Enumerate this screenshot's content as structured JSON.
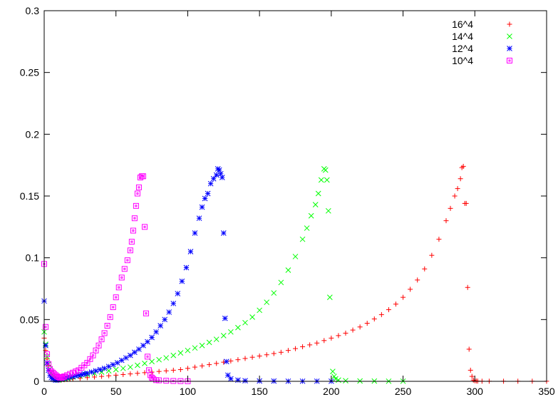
{
  "chart_data": {
    "type": "scatter",
    "xlim": [
      0,
      350
    ],
    "ylim": [
      0,
      0.3
    ],
    "x_ticks": [
      0,
      50,
      100,
      150,
      200,
      250,
      300,
      350
    ],
    "y_ticks": [
      0,
      0.05,
      0.1,
      0.15,
      0.2,
      0.25,
      0.3
    ],
    "x_tick_labels": [
      "0",
      "50",
      "100",
      "150",
      "200",
      "250",
      "300",
      "350"
    ],
    "y_tick_labels": [
      "0",
      "0.05",
      "0.1",
      "0.15",
      "0.2",
      "0.25",
      "0.3"
    ],
    "grid": false,
    "legend_position": "top-right",
    "series": [
      {
        "name": "16^4",
        "color": "#ff0000",
        "marker": "plus",
        "x": [
          0,
          1,
          2,
          3,
          4,
          5,
          6,
          7,
          8,
          9,
          10,
          12,
          14,
          16,
          18,
          20,
          25,
          30,
          35,
          40,
          45,
          50,
          55,
          60,
          65,
          70,
          75,
          80,
          85,
          90,
          95,
          100,
          105,
          110,
          115,
          120,
          125,
          130,
          135,
          140,
          145,
          150,
          155,
          160,
          165,
          170,
          175,
          180,
          185,
          190,
          195,
          200,
          205,
          210,
          215,
          220,
          225,
          230,
          235,
          240,
          245,
          250,
          255,
          260,
          265,
          270,
          275,
          280,
          283,
          286,
          288,
          290,
          291,
          292,
          293,
          294,
          295,
          296,
          297,
          298,
          299,
          300,
          301,
          302,
          305,
          310,
          320,
          330,
          340,
          350
        ],
        "y": [
          0.035,
          0.025,
          0.018,
          0.013,
          0.009,
          0.006,
          0.004,
          0.003,
          0.002,
          0.0015,
          0.001,
          0.0012,
          0.0014,
          0.0016,
          0.0018,
          0.002,
          0.0025,
          0.003,
          0.0035,
          0.004,
          0.0045,
          0.005,
          0.0055,
          0.006,
          0.0065,
          0.007,
          0.0075,
          0.008,
          0.0085,
          0.009,
          0.0095,
          0.0105,
          0.0115,
          0.0125,
          0.0135,
          0.0145,
          0.0155,
          0.0165,
          0.0175,
          0.0185,
          0.0195,
          0.0205,
          0.0215,
          0.0225,
          0.0235,
          0.025,
          0.0265,
          0.028,
          0.0295,
          0.031,
          0.033,
          0.035,
          0.037,
          0.039,
          0.0415,
          0.044,
          0.047,
          0.0505,
          0.054,
          0.058,
          0.0625,
          0.068,
          0.0745,
          0.082,
          0.091,
          0.102,
          0.115,
          0.13,
          0.14,
          0.15,
          0.156,
          0.164,
          0.173,
          0.174,
          0.144,
          0.144,
          0.076,
          0.026,
          0.009,
          0.004,
          0.001,
          0.0005,
          0.0003,
          0.0002,
          0.0001,
          0.0001,
          0.0001,
          0.0001,
          0.0001,
          0.0001
        ]
      },
      {
        "name": "14^4",
        "color": "#00ff00",
        "marker": "cross",
        "x": [
          0,
          1,
          2,
          3,
          4,
          5,
          6,
          7,
          8,
          9,
          10,
          12,
          14,
          16,
          18,
          20,
          25,
          30,
          35,
          40,
          45,
          50,
          55,
          60,
          65,
          70,
          75,
          80,
          85,
          90,
          95,
          100,
          105,
          110,
          115,
          120,
          125,
          130,
          135,
          140,
          145,
          150,
          155,
          160,
          165,
          170,
          175,
          180,
          183,
          186,
          189,
          191,
          193,
          195,
          196,
          197,
          198,
          199,
          201,
          202,
          203,
          205,
          210,
          220,
          230,
          240,
          250
        ],
        "y": [
          0.04,
          0.03,
          0.02,
          0.014,
          0.01,
          0.007,
          0.005,
          0.003,
          0.002,
          0.0015,
          0.001,
          0.0015,
          0.002,
          0.0025,
          0.003,
          0.0035,
          0.0045,
          0.0055,
          0.0065,
          0.0075,
          0.0085,
          0.0095,
          0.0105,
          0.0115,
          0.013,
          0.0145,
          0.016,
          0.0175,
          0.019,
          0.021,
          0.023,
          0.025,
          0.027,
          0.029,
          0.0315,
          0.034,
          0.037,
          0.04,
          0.0435,
          0.0475,
          0.052,
          0.0575,
          0.064,
          0.0715,
          0.08,
          0.09,
          0.101,
          0.115,
          0.124,
          0.134,
          0.143,
          0.152,
          0.163,
          0.172,
          0.171,
          0.163,
          0.138,
          0.068,
          0.008,
          0.004,
          0.002,
          0.001,
          0.0005,
          0.0003,
          0.0002,
          0.0001,
          0.0001
        ]
      },
      {
        "name": "12^4",
        "color": "#0000ff",
        "marker": "star",
        "x": [
          0,
          1,
          2,
          3,
          4,
          5,
          6,
          7,
          8,
          9,
          10,
          12,
          14,
          16,
          18,
          20,
          22,
          24,
          26,
          28,
          30,
          33,
          36,
          39,
          42,
          45,
          48,
          51,
          54,
          57,
          60,
          63,
          66,
          69,
          72,
          75,
          78,
          81,
          84,
          87,
          90,
          93,
          96,
          99,
          102,
          105,
          108,
          110,
          112,
          114,
          116,
          118,
          120,
          121,
          122,
          123,
          124,
          125,
          126,
          127,
          128,
          130,
          135,
          140,
          150,
          160,
          170,
          180,
          190,
          200
        ],
        "y": [
          0.065,
          0.029,
          0.015,
          0.009,
          0.005,
          0.003,
          0.002,
          0.0015,
          0.001,
          0.0012,
          0.0015,
          0.002,
          0.0025,
          0.003,
          0.0035,
          0.004,
          0.0045,
          0.005,
          0.0055,
          0.006,
          0.0065,
          0.0075,
          0.0085,
          0.0095,
          0.0105,
          0.012,
          0.0135,
          0.015,
          0.017,
          0.019,
          0.021,
          0.0235,
          0.026,
          0.029,
          0.032,
          0.0355,
          0.04,
          0.045,
          0.05,
          0.056,
          0.063,
          0.071,
          0.081,
          0.092,
          0.105,
          0.12,
          0.132,
          0.141,
          0.148,
          0.152,
          0.16,
          0.164,
          0.167,
          0.172,
          0.171,
          0.168,
          0.165,
          0.12,
          0.051,
          0.016,
          0.005,
          0.002,
          0.001,
          0.0005,
          0.0003,
          0.0002,
          0.0001,
          0.0001,
          0.0001,
          0.0001
        ]
      },
      {
        "name": "10^4",
        "color": "#ff00ff",
        "marker": "square",
        "x": [
          0,
          1,
          2,
          3,
          4,
          5,
          6,
          7,
          8,
          9,
          10,
          11,
          12,
          13,
          14,
          16,
          18,
          20,
          22,
          24,
          26,
          28,
          30,
          32,
          34,
          36,
          38,
          40,
          42,
          44,
          46,
          48,
          50,
          52,
          54,
          56,
          58,
          60,
          61,
          62,
          63,
          64,
          65,
          66,
          67,
          68,
          69,
          70,
          71,
          72,
          73,
          74,
          75,
          76,
          78,
          80,
          85,
          90,
          95,
          100
        ],
        "y": [
          0.095,
          0.044,
          0.022,
          0.014,
          0.01,
          0.008,
          0.007,
          0.006,
          0.005,
          0.004,
          0.0035,
          0.003,
          0.003,
          0.0035,
          0.004,
          0.005,
          0.006,
          0.007,
          0.008,
          0.009,
          0.011,
          0.013,
          0.015,
          0.018,
          0.021,
          0.025,
          0.029,
          0.034,
          0.039,
          0.045,
          0.052,
          0.06,
          0.068,
          0.076,
          0.084,
          0.091,
          0.098,
          0.106,
          0.113,
          0.122,
          0.132,
          0.142,
          0.152,
          0.157,
          0.165,
          0.166,
          0.166,
          0.125,
          0.055,
          0.02,
          0.009,
          0.005,
          0.003,
          0.002,
          0.001,
          0.0008,
          0.0005,
          0.0003,
          0.0002,
          0.0001
        ]
      }
    ]
  }
}
